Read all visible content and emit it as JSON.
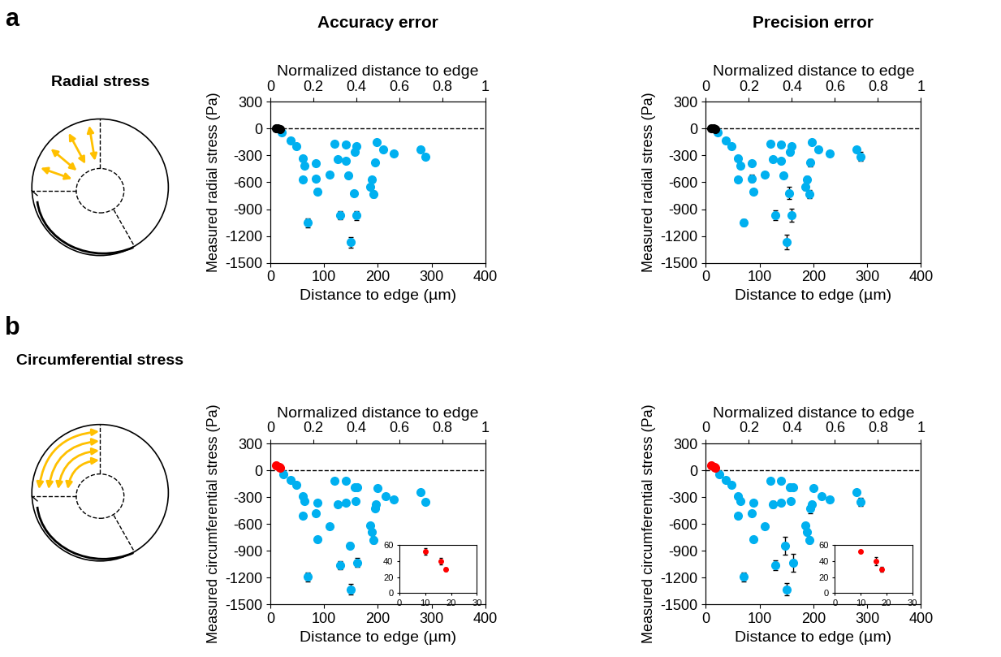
{
  "columns": [
    "Accuracy error",
    "Precision error"
  ],
  "panels": [
    {
      "letter": "a",
      "label": "Radial stress"
    },
    {
      "letter": "b",
      "label": "Circumferential stress"
    }
  ],
  "chart_data": [
    {
      "type": "scatter",
      "xlabel": "Distance to edge (µm)",
      "x2label": "Normalized distance to edge",
      "ylabel": "Measured radial stress (Pa)",
      "xlim": [
        0,
        400
      ],
      "xticks": [
        0,
        100,
        200,
        300,
        400
      ],
      "x2lim": [
        0,
        1
      ],
      "x2ticks": [
        0,
        0.2,
        0.4,
        0.6,
        0.8,
        1
      ],
      "ylim": [
        -1500,
        300
      ],
      "yticks": [
        -1500,
        -1200,
        -900,
        -600,
        -300,
        0,
        300
      ],
      "hline": {
        "value": 0,
        "line_style": "dashed"
      },
      "series": [
        {
          "color": "#00b0f0",
          "marker": "circle",
          "x": [
            22,
            38,
            48,
            60,
            64,
            60,
            70,
            85,
            85,
            88,
            110,
            120,
            125,
            130,
            140,
            140,
            145,
            150,
            155,
            157,
            160,
            160,
            185,
            188,
            192,
            195,
            198,
            210,
            230,
            280,
            288
          ],
          "values": [
            -40,
            -130,
            -200,
            -330,
            -410,
            -570,
            -1050,
            -390,
            -555,
            -700,
            -510,
            -170,
            -340,
            -970,
            -180,
            -360,
            -520,
            -1270,
            -720,
            -260,
            -200,
            -970,
            -650,
            -570,
            -730,
            -380,
            -150,
            -230,
            -280,
            -230,
            -310
          ],
          "errors": [
            5,
            8,
            10,
            10,
            12,
            15,
            50,
            10,
            25,
            30,
            15,
            10,
            10,
            45,
            10,
            15,
            10,
            60,
            25,
            15,
            10,
            50,
            25,
            20,
            35,
            15,
            10,
            10,
            10,
            10,
            15
          ]
        },
        {
          "color": "#000000",
          "marker": "circle",
          "x": [
            10,
            14,
            18
          ],
          "values": [
            5,
            0,
            -5
          ],
          "errors": [
            3,
            3,
            3
          ]
        }
      ]
    },
    {
      "type": "scatter",
      "xlabel": "Distance to edge (µm)",
      "x2label": "Normalized distance to edge",
      "ylabel": "Measured radial stress (Pa)",
      "xlim": [
        0,
        400
      ],
      "xticks": [
        0,
        100,
        200,
        300,
        400
      ],
      "x2lim": [
        0,
        1
      ],
      "x2ticks": [
        0,
        0.2,
        0.4,
        0.6,
        0.8,
        1
      ],
      "ylim": [
        -1500,
        300
      ],
      "yticks": [
        -1500,
        -1200,
        -900,
        -600,
        -300,
        0,
        300
      ],
      "hline": {
        "value": 0,
        "line_style": "dashed"
      },
      "series": [
        {
          "color": "#00b0f0",
          "marker": "circle",
          "x": [
            22,
            38,
            48,
            60,
            64,
            60,
            70,
            85,
            85,
            88,
            110,
            120,
            125,
            130,
            140,
            140,
            145,
            150,
            155,
            157,
            160,
            160,
            185,
            188,
            192,
            195,
            198,
            210,
            230,
            280,
            288
          ],
          "values": [
            -40,
            -130,
            -200,
            -330,
            -410,
            -570,
            -1050,
            -390,
            -555,
            -700,
            -510,
            -170,
            -340,
            -970,
            -180,
            -360,
            -520,
            -1270,
            -720,
            -260,
            -200,
            -970,
            -650,
            -570,
            -730,
            -380,
            -150,
            -230,
            -280,
            -230,
            -310
          ],
          "errors": [
            5,
            10,
            25,
            20,
            15,
            10,
            40,
            15,
            45,
            20,
            20,
            15,
            25,
            55,
            10,
            30,
            15,
            80,
            70,
            40,
            20,
            75,
            40,
            35,
            45,
            40,
            15,
            10,
            15,
            10,
            50
          ]
        },
        {
          "color": "#000000",
          "marker": "circle",
          "x": [
            10,
            14,
            18
          ],
          "values": [
            5,
            0,
            -5
          ],
          "errors": [
            3,
            3,
            3
          ]
        }
      ]
    },
    {
      "type": "scatter",
      "xlabel": "Distance to edge (µm)",
      "x2label": "Normalized distance to edge",
      "ylabel": "Measured circumferential stress (Pa)",
      "xlim": [
        0,
        400
      ],
      "xticks": [
        0,
        100,
        200,
        300,
        400
      ],
      "x2lim": [
        0,
        1
      ],
      "x2ticks": [
        0,
        0.2,
        0.4,
        0.6,
        0.8,
        1
      ],
      "ylim": [
        -1500,
        300
      ],
      "yticks": [
        -1500,
        -1200,
        -900,
        -600,
        -300,
        0,
        300
      ],
      "hline": {
        "value": 0,
        "line_style": "dashed"
      },
      "series": [
        {
          "color": "#00b0f0",
          "marker": "circle",
          "x": [
            25,
            38,
            48,
            60,
            64,
            60,
            70,
            85,
            88,
            88,
            110,
            120,
            125,
            130,
            140,
            140,
            148,
            150,
            157,
            158,
            162,
            162,
            185,
            188,
            192,
            195,
            197,
            200,
            215,
            230,
            280,
            288
          ],
          "values": [
            -40,
            -110,
            -160,
            -290,
            -340,
            -510,
            -1190,
            -480,
            -360,
            -770,
            -630,
            -120,
            -380,
            -1060,
            -120,
            -360,
            -840,
            -1330,
            -190,
            -340,
            -190,
            -1030,
            -620,
            -690,
            -780,
            -430,
            -380,
            -200,
            -290,
            -330,
            -240,
            -350
          ],
          "errors": [
            5,
            8,
            10,
            10,
            12,
            15,
            50,
            15,
            10,
            30,
            20,
            10,
            15,
            45,
            10,
            15,
            30,
            60,
            15,
            10,
            10,
            50,
            25,
            25,
            35,
            15,
            15,
            10,
            10,
            10,
            10,
            15
          ]
        },
        {
          "color": "#ff0000",
          "marker": "circle",
          "x": [
            10,
            16,
            18
          ],
          "values": [
            52,
            40,
            30
          ],
          "errors": [
            4,
            4,
            2
          ]
        }
      ],
      "inset": {
        "xlim": [
          0,
          30
        ],
        "xticks": [
          0,
          10,
          20,
          30
        ],
        "ylim": [
          0,
          60
        ],
        "yticks": [
          0,
          20,
          40,
          60
        ],
        "series": [
          {
            "color": "#ff0000",
            "marker": "circle",
            "x": [
              10,
              16,
              18
            ],
            "values": [
              52,
              40,
              30
            ],
            "errors": [
              4,
              4,
              2
            ]
          }
        ]
      }
    },
    {
      "type": "scatter",
      "xlabel": "Distance to edge (µm)",
      "x2label": "Normalized distance to edge",
      "ylabel": "Measured circumferential stress (Pa)",
      "xlim": [
        0,
        400
      ],
      "xticks": [
        0,
        100,
        200,
        300,
        400
      ],
      "x2lim": [
        0,
        1
      ],
      "x2ticks": [
        0,
        0.2,
        0.4,
        0.6,
        0.8,
        1
      ],
      "ylim": [
        -1500,
        300
      ],
      "yticks": [
        -1500,
        -1200,
        -900,
        -600,
        -300,
        0,
        300
      ],
      "hline": {
        "value": 0,
        "line_style": "dashed"
      },
      "series": [
        {
          "color": "#00b0f0",
          "marker": "circle",
          "x": [
            25,
            38,
            48,
            60,
            64,
            60,
            70,
            85,
            88,
            88,
            110,
            120,
            125,
            130,
            140,
            140,
            148,
            150,
            157,
            158,
            162,
            162,
            185,
            188,
            192,
            195,
            197,
            200,
            215,
            230,
            280,
            288
          ],
          "values": [
            -40,
            -110,
            -160,
            -290,
            -340,
            -510,
            -1190,
            -480,
            -360,
            -770,
            -630,
            -120,
            -380,
            -1060,
            -120,
            -360,
            -840,
            -1330,
            -190,
            -340,
            -190,
            -1030,
            -620,
            -690,
            -780,
            -430,
            -380,
            -200,
            -290,
            -330,
            -240,
            -350
          ],
          "errors": [
            5,
            10,
            20,
            20,
            30,
            10,
            50,
            20,
            15,
            20,
            25,
            10,
            40,
            55,
            15,
            20,
            100,
            70,
            40,
            20,
            15,
            100,
            35,
            40,
            40,
            50,
            20,
            10,
            10,
            10,
            10,
            45
          ]
        },
        {
          "color": "#ff0000",
          "marker": "circle",
          "x": [
            10,
            16,
            18
          ],
          "values": [
            52,
            40,
            30
          ],
          "errors": [
            1,
            5,
            3
          ]
        }
      ],
      "inset": {
        "xlim": [
          0,
          30
        ],
        "xticks": [
          0,
          10,
          20,
          30
        ],
        "ylim": [
          0,
          60
        ],
        "yticks": [
          0,
          20,
          40,
          60
        ],
        "series": [
          {
            "color": "#ff0000",
            "marker": "circle",
            "x": [
              10,
              16,
              18
            ],
            "values": [
              52,
              40,
              30
            ],
            "errors": [
              1,
              5,
              3
            ]
          }
        ]
      }
    }
  ]
}
